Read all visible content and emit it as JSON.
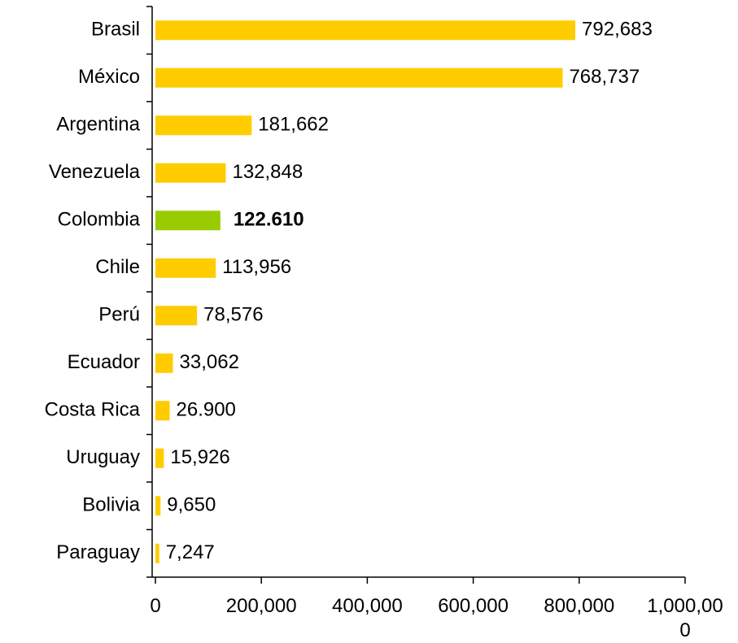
{
  "chart_data": {
    "type": "barh",
    "categories": [
      "Brasil",
      "México",
      "Argentina",
      "Venezuela",
      "Colombia",
      "Chile",
      "Perú",
      "Ecuador",
      "Costa Rica",
      "Uruguay",
      "Bolivia",
      "Paraguay"
    ],
    "values": [
      792683,
      768737,
      181662,
      132848,
      122610,
      113956,
      78576,
      33062,
      26900,
      15926,
      9650,
      7247
    ],
    "value_labels": [
      "792,683",
      "768,737",
      "181,662",
      "132,848",
      "122.610",
      "113,956",
      "78,576",
      "33,062",
      "26.900",
      "15,926",
      "9,650",
      "7,247"
    ],
    "color": "#ffcc00",
    "highlight": "Colombia",
    "highlight_color": "#99cc00",
    "xlim": [
      0,
      1000000
    ],
    "xticks": [
      0,
      {
        "value": 200000,
        "label": "200,000"
      },
      {
        "value": 400000,
        "label": "400,000"
      },
      {
        "value": 600000,
        "label": "600,000"
      },
      {
        "value": 800000,
        "label": "800,000"
      },
      {
        "value": 1000000,
        "label": "1,000,000"
      }
    ],
    "grid": false
  }
}
